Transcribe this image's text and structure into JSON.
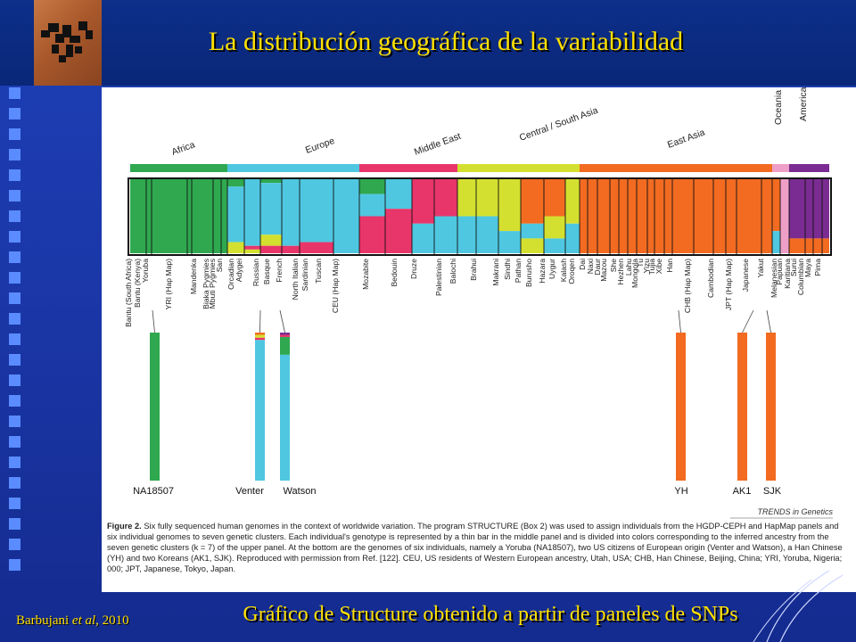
{
  "slide": {
    "title": "La distribución geográfica de la variabilidad",
    "citation_author": "Barbujani ",
    "citation_etal": "et al",
    "citation_year": ", 2010",
    "bottom_caption": "Gráfico de Structure obtenido a partir de paneles de SNPs"
  },
  "figure": {
    "regions": [
      "Africa",
      "Europe",
      "Middle East",
      "Central / South Asia",
      "East Asia",
      "Oceania",
      "America"
    ],
    "region_colors": [
      "#2fa84f",
      "#4fc7e0",
      "#e8356a",
      "#d4e02f",
      "#f26b21",
      "#ee9fc7",
      "#7b2c93"
    ],
    "populations": [
      "Bantu (South Africa)",
      "Bantu (Kenya)",
      "Yoruba",
      "YRI (Hap Map)",
      "Mandenka",
      "Biaka Pygmies",
      "Mbuti Pygmies",
      "San",
      "Orcadian",
      "Adygei",
      "Russian",
      "Basque",
      "French",
      "North Italian",
      "Sardinian",
      "Tuscan",
      "CEU (Hap Map)",
      "Mozabite",
      "Bedouin",
      "Druze",
      "Palestinian",
      "Balochi",
      "Brahui",
      "Makrani",
      "Sindhi",
      "Pathan",
      "Burusho",
      "Hazara",
      "Uygur",
      "Kalash",
      "Oroqen",
      "Dai",
      "Naxi",
      "Daur",
      "Mazou",
      "She",
      "Hezhen",
      "Lahu",
      "Mongola",
      "Tu",
      "Yizu",
      "Tujia",
      "Xibe",
      "Han",
      "CHB (Hap Map)",
      "Cambodian",
      "JPT (Hap Map)",
      "Japanese",
      "Yakut",
      "Melanesian",
      "Papuan",
      "Karitiana",
      "Surui",
      "Columbian",
      "Maya",
      "Pima"
    ],
    "genomes": [
      "NA18507",
      "Venter",
      "Watson",
      "YH",
      "AK1",
      "SJK"
    ],
    "source_label": "TRENDS in Genetics",
    "caption_bold": "Figure 2.",
    "caption_text": " Six fully sequenced human genomes in the context of worldwide variation. The program STRUCTURE (Box 2) was used to assign individuals from the HGDP-CEPH and HapMap panels and six individual genomes to seven genetic clusters. Each individual's genotype is represented by a thin bar in the middle panel and is divided into colors corresponding to the inferred ancestry from the seven genetic clusters (k = 7) of the upper panel. At the bottom are the genomes of six individuals, namely a Yoruba (NA18507), two US citizens of European origin (Venter and Watson), a Han Chinese (YH) and two Koreans (AK1, SJK). Reproduced with permission from Ref. [122]. CEU, US residents of Western European ancestry, Utah, USA; CHB, Han Chinese, Beijing, China; YRI, Yoruba, Nigeria; 000; JPT, Japanese, Tokyo, Japan."
  }
}
